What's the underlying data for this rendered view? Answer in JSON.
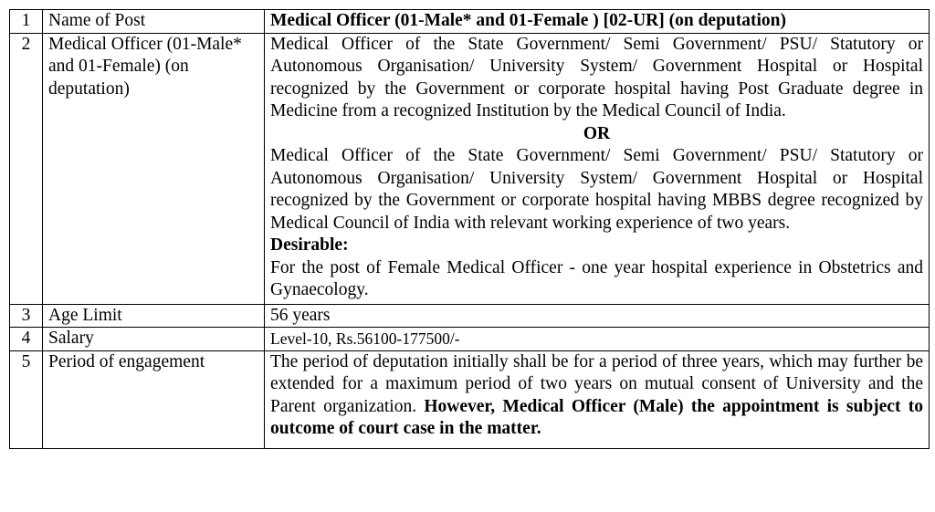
{
  "rows": [
    {
      "num": "1",
      "label": "Name of Post",
      "detail": "Medical Officer (01-Male* and 01-Female ) [02-UR] (on deputation)"
    },
    {
      "num": "2",
      "label": "Medical Officer (01-Male* and 01-Female) (on deputation)",
      "detail_para1": "Medical Officer of the State Government/ Semi Government/ PSU/ Statutory or Autonomous Organisation/ University System/ Government Hospital or Hospital recognized by the Government or corporate hospital having Post Graduate degree in Medicine from a recognized Institution by the Medical Council of India.",
      "or": "OR",
      "detail_para2": "Medical Officer of the State Government/ Semi Government/ PSU/ Statutory or Autonomous Organisation/ University System/ Government Hospital or Hospital recognized by the Government or corporate hospital having MBBS degree recognized by Medical Council of India with relevant working experience of two years.",
      "desirable_heading": "Desirable:",
      "desirable_text": "For the post of Female Medical Officer - one year hospital experience in Obstetrics and Gynaecology."
    },
    {
      "num": "3",
      "label": "Age Limit",
      "detail": "56 years"
    },
    {
      "num": "4",
      "label": "Salary",
      "detail": "Level-10, Rs.56100-177500/-"
    },
    {
      "num": "5",
      "label": "Period of engagement",
      "detail_normal": "The period of deputation initially shall be for a period of three years, which may further be extended for a maximum period of two years on mutual consent of University and the Parent organization. ",
      "detail_bold": "However, Medical Officer (Male) the appointment is subject to outcome of court case in the matter."
    }
  ]
}
